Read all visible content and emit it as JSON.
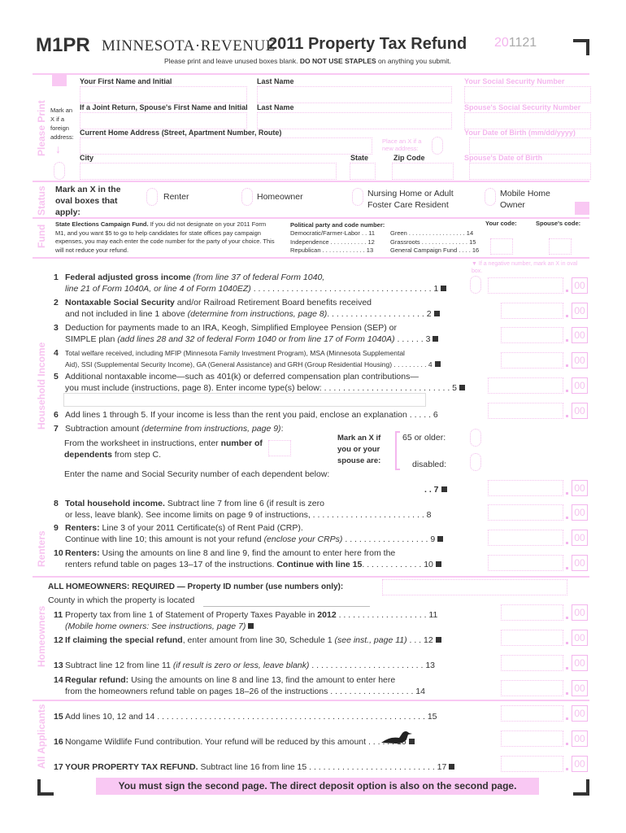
{
  "header": {
    "form_id": "M1PR",
    "agency": "MINNESOTA·REVENUE",
    "title": "2011 Property Tax Refund",
    "code_prefix": "20",
    "code_suffix": "1121",
    "instructions_pre": "Please print and leave unused boxes blank.",
    "instructions_bold": "DO NOT USE STAPLES",
    "instructions_post": "on anything you submit."
  },
  "sections": {
    "please_print": "Please Print",
    "status": "Status",
    "fund": "Fund",
    "household_income": "Household Income",
    "renters": "Renters",
    "homeowners": "Homeowners",
    "all_applicants": "All Applicants"
  },
  "name_block": {
    "first_name": "Your First Name and Initial",
    "last_name": "Last Name",
    "ssn": "Your Social Security Number",
    "spouse_first": "If a Joint Return, Spouse's First Name and Initial",
    "spouse_last": "Last Name",
    "spouse_ssn": "Spouse's Social Security Number",
    "foreign": "Mark an X if a foreign address:",
    "address": "Current Home Address (Street, Apartment Number, Route)",
    "new_address": "Place an X if a new address:",
    "dob": "Your Date of Birth (mm/dd/yyyy)",
    "city": "City",
    "state": "State",
    "zip": "Zip Code",
    "spouse_dob": "Spouse's Date of Birth"
  },
  "status": {
    "prompt": "Mark an X in the oval boxes that apply:",
    "options": [
      "Renter",
      "Homeowner",
      "Nursing Home or Adult Foster Care Resident",
      "Mobile Home Owner"
    ]
  },
  "fund": {
    "title": "State Elections Campaign Fund.",
    "text": "If you did not designate on your 2011 Form M1, and you want $5 to go to help candidates for state offices pay campaign expenses, you may each enter the code number for the party of your choice. This will not reduce your refund.",
    "party_header": "Political party and code number:",
    "parties": [
      "Democratic/Farmer-Labor . . 11",
      "Independence . . . . . . . . . . . 12",
      "Republican . . . . . . . . . . . . . 13",
      "Green . . . . . . . . . . . . . . . . . 14",
      "Grassroots . . . . . . . . . . . . . . 15",
      "General Campaign Fund . . . . 16"
    ],
    "your_code": "Your code:",
    "spouse_code": "Spouse's code:"
  },
  "negative_note": "If a negative number, mark an X in oval box.",
  "cents": "00",
  "lines": [
    {
      "n": "1",
      "p": [
        [
          "b",
          "Federal adjusted gross income "
        ],
        [
          "i",
          "(from line 37 of federal Form 1040,"
        ]
      ],
      "p2": [
        [
          "i",
          "line 21 of Form 1040A, or line 4 of Form 1040EZ)"
        ],
        [
          "n",
          " . . . . . . . . . . . . . . . . . . . . . . . . . . . . . . . . . . . . . . 1"
        ]
      ],
      "sq": true
    },
    {
      "n": "2",
      "p": [
        [
          "b",
          "Nontaxable Social Security"
        ],
        [
          "n",
          " and/or Railroad Retirement Board benefits received"
        ]
      ],
      "p2": [
        [
          "n",
          "and not included in line 1 above "
        ],
        [
          "i",
          "(determine from instructions, page 8)"
        ],
        [
          "n",
          ". . . . . . . . . . . . . . . . . . . . . 2"
        ]
      ],
      "sq": true
    },
    {
      "n": "3",
      "p": [
        [
          "n",
          "Deduction for payments made to an IRA, Keogh, Simplified Employee Pension (SEP) or"
        ]
      ],
      "p2": [
        [
          "n",
          "SIMPLE plan "
        ],
        [
          "i",
          "(add lines 28 and 32 of federal Form 1040 or from line 17 of Form 1040A)"
        ],
        [
          "n",
          " . . . . . . 3"
        ]
      ],
      "sq": true
    },
    {
      "n": "4",
      "p": [
        [
          "s",
          "Total welfare received, including MFIP (Minnesota Family Investment Program), MSA (Minnesota Supplemental"
        ]
      ],
      "p2": [
        [
          "s",
          "Aid), SSI (Supplemental Security Income), GA (General Assistance) and GRH (Group Residential Housing) . . . . . . . . . 4"
        ]
      ],
      "sq": true
    },
    {
      "n": "5",
      "p": [
        [
          "n",
          "Additional nontaxable income—such as 401(k) or deferred compensation plan contributions—"
        ]
      ],
      "p2": [
        [
          "n",
          "you must include (instructions, page 8). Enter income type(s) below: . . . . . . . . . . . . . . . . . . . . . . . . . . . 5"
        ]
      ],
      "sq": true
    },
    {
      "n": "6",
      "p": [
        [
          "n",
          "Add lines 1 through 5. If your income is less than the rent you paid, enclose an explanation  . . . . . 6"
        ]
      ],
      "p2": [],
      "sq": false
    },
    {
      "n": "7",
      "p": [
        [
          "n",
          "Subtraction amount "
        ],
        [
          "i",
          "(determine from instructions, page 9)"
        ],
        [
          "n",
          ":"
        ]
      ],
      "p2": [],
      "sq": false
    },
    {
      "n": "8",
      "p": [
        [
          "b",
          "Total household income."
        ],
        [
          "n",
          " Subtract line 7 from line 6 (if result is zero"
        ]
      ],
      "p2": [
        [
          "n",
          "or less, leave blank). See income limits on page 9 of instructions,  . . . . . . . . . . . . . . . . . . . . . . . . 8"
        ]
      ],
      "sq": false
    },
    {
      "n": "9",
      "p": [
        [
          "b",
          "Renters:"
        ],
        [
          "n",
          " Line 3 of your 2011 Certificate(s) of Rent Paid (CRP)."
        ]
      ],
      "p2": [
        [
          "n",
          "Continue with line 10; this amount is not your refund "
        ],
        [
          "i",
          "(enclose your CRPs)"
        ],
        [
          "n",
          " . . . . . . . . . . . . . . . . . . 9"
        ]
      ],
      "sq": true
    },
    {
      "n": "10",
      "p": [
        [
          "b",
          "Renters:"
        ],
        [
          "n",
          " Using the amounts on line 8 and line 9, find the amount to enter here from the"
        ]
      ],
      "p2": [
        [
          "n",
          "renters refund table on pages 13–17 of the instructions. "
        ],
        [
          "b",
          "Continue with line 15"
        ],
        [
          "n",
          ". . . . . . . . . . . . . 10"
        ]
      ],
      "sq": true
    },
    {
      "n": "11",
      "p": [
        [
          "n",
          "Property tax from line 1 of Statement of Property Taxes Payable in "
        ],
        [
          "b",
          "2012"
        ],
        [
          "n",
          " . . . . . . . . . . . . . . . . . . . 11"
        ]
      ],
      "p2": [
        [
          "i",
          "(Mobile home owners: See instructions, page 7)"
        ]
      ],
      "sq": true
    },
    {
      "n": "12",
      "p": [
        [
          "b",
          "If claiming the special refund"
        ],
        [
          "n",
          ", enter amount from line 30, Schedule 1 "
        ],
        [
          "i",
          "(see inst., page 11)"
        ],
        [
          "n",
          " . . . 12"
        ]
      ],
      "p2": [],
      "sq": true
    },
    {
      "n": "13",
      "p": [
        [
          "n",
          "Subtract line 12 from line 11 "
        ],
        [
          "i",
          "(if result is zero or less, leave blank)"
        ],
        [
          "n",
          " . . . . . . . . . . . . . . . . . . . . . . . . 13"
        ]
      ],
      "p2": [],
      "sq": false
    },
    {
      "n": "14",
      "p": [
        [
          "b",
          "Regular refund:"
        ],
        [
          "n",
          " Using the amounts on line 8 and line 13, find the amount to enter here"
        ]
      ],
      "p2": [
        [
          "n",
          "from the homeowners refund table on pages 18–26 of the instructions  . . . . . . . . . . . . . . . . . . 14"
        ]
      ],
      "sq": false
    },
    {
      "n": "15",
      "p": [
        [
          "n",
          "Add lines 10, 12 and 14 . . . . . . . . . . . . . . . . . . . . . . . . . . . . . . . . . . . . . . . . . . . . . . . . . . . . . . . . . 15"
        ]
      ],
      "p2": [],
      "sq": false
    },
    {
      "n": "16",
      "p": [
        [
          "n",
          "Nongame Wildlife Fund contribution. Your refund will be reduced by this amount . . . . . . "
        ],
        [
          "n",
          "16"
        ]
      ],
      "p2": [],
      "sq": true
    },
    {
      "n": "17",
      "p": [
        [
          "b",
          "YOUR PROPERTY TAX REFUND."
        ],
        [
          "n",
          " Subtract line 16 from line 15 . . . . . . . . . . . . . . . . . . . . . . . . . . . 17"
        ]
      ],
      "p2": [],
      "sq": true
    }
  ],
  "line7": {
    "dependents_a": "From the worksheet in instructions, enter ",
    "dependents_b": "number of dependents",
    "dependents_c": " from step C.",
    "mark": "Mark an X if you or your spouse are:",
    "age": "65 or older:",
    "disabled": "disabled:",
    "dependents_names": "Enter the name and Social Security number of each dependent below:",
    "trail": ". . 7"
  },
  "homeowners": {
    "property_id_bold": "ALL HOMEOWNERS: REQUIRED — Property ID number",
    "property_id_rest": " (use numbers only):",
    "county": "County in which the property is located"
  },
  "footer": "You must sign the second page. The direct deposit option is also on the second page."
}
